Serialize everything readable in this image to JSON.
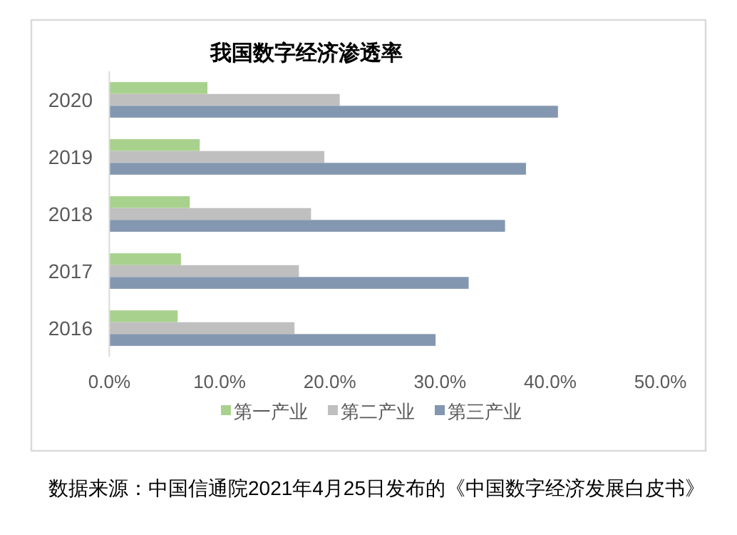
{
  "chart_data": {
    "type": "bar",
    "orientation": "horizontal",
    "title": "我国数字经济渗透率",
    "categories": [
      "2020",
      "2019",
      "2018",
      "2017",
      "2016"
    ],
    "series": [
      {
        "name": "第一产业",
        "color": "#a9d18e",
        "values": [
          8.9,
          8.2,
          7.3,
          6.5,
          6.2
        ]
      },
      {
        "name": "第二产业",
        "color": "#bfbfbf",
        "values": [
          20.9,
          19.5,
          18.3,
          17.2,
          16.8
        ]
      },
      {
        "name": "第三产业",
        "color": "#8497b0",
        "values": [
          40.7,
          37.8,
          35.9,
          32.6,
          29.6
        ]
      }
    ],
    "xlim": [
      0,
      50
    ],
    "xticks": [
      {
        "value": 0,
        "label": "0.0%"
      },
      {
        "value": 10,
        "label": "10.0%"
      },
      {
        "value": 20,
        "label": "20.0%"
      },
      {
        "value": 30,
        "label": "30.0%"
      },
      {
        "value": 40,
        "label": "40.0%"
      },
      {
        "value": 50,
        "label": "50.0%"
      }
    ],
    "grid": false,
    "legend": "bottom",
    "annotations": [
      "数据来源：中国信通院2021年4月25日发布的《中国数字经济发展白皮书》"
    ]
  }
}
